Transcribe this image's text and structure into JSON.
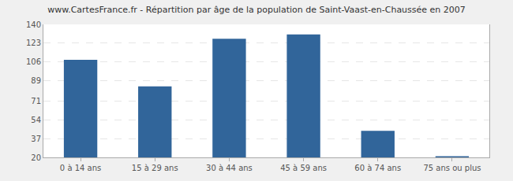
{
  "chart_data": {
    "type": "bar",
    "title": "www.CartesFrance.fr - Répartition par âge de la population de Saint-Vaast-en-Chaussée en 2007",
    "categories": [
      "0 à 14 ans",
      "15 à 29 ans",
      "30 à 44 ans",
      "45 à 59 ans",
      "60 à 74 ans",
      "75 ans ou plus"
    ],
    "values": [
      108,
      84,
      127,
      131,
      44,
      21
    ],
    "color": "#31659a",
    "ylim": [
      20,
      140
    ],
    "yticks": [
      20,
      37,
      54,
      71,
      89,
      106,
      123,
      140
    ],
    "grid": true
  }
}
